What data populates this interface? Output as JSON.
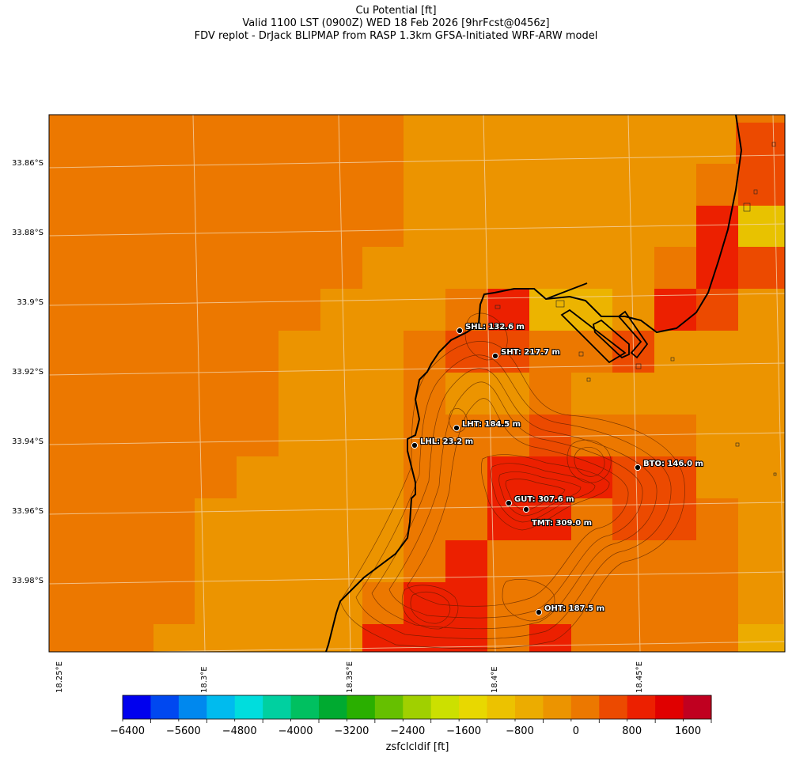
{
  "title": {
    "line1": "Cu Potential [ft]",
    "line2": "Valid 1100 LST (0900Z) WED 18 Feb 2026 [9hrFcst@0456z]",
    "line3": "FDV replot - DrJack BLIPMAP from RASP 1.3km GFSA-Initiated WRF-ARW model"
  },
  "map": {
    "lat_labels": [
      "33.86°S",
      "33.88°S",
      "33.9°S",
      "33.92°S",
      "33.94°S",
      "33.96°S",
      "33.98°S"
    ],
    "lon_labels": [
      "18.25°E",
      "18.3°E",
      "18.35°E",
      "18.4°E",
      "18.45°E"
    ],
    "stations": [
      {
        "id": "SHL",
        "label": "SHL: 132.6 m"
      },
      {
        "id": "SHT",
        "label": "SHT: 217.7 m"
      },
      {
        "id": "LHT",
        "label": "LHT: 184.5 m"
      },
      {
        "id": "LHL",
        "label": "LHL: 23.2 m"
      },
      {
        "id": "BTO",
        "label": "BTO: 146.0 m"
      },
      {
        "id": "GUT",
        "label": "GUT: 307.6 m"
      },
      {
        "id": "TMT",
        "label": "TMT: 309.0 m"
      },
      {
        "id": "OHT",
        "label": "OHT: 187.5 m"
      }
    ]
  },
  "colorbar": {
    "label": "zsfclcldif [ft]",
    "tick_labels": [
      "−6400",
      "−5600",
      "−4800",
      "−4000",
      "−3200",
      "−2400",
      "−1600",
      "−800",
      "0",
      "800",
      "1600"
    ],
    "colors": [
      "#0000ee",
      "#0048f0",
      "#0088ee",
      "#00bbee",
      "#00dddd",
      "#00d0a0",
      "#00c060",
      "#00aa30",
      "#2aaf00",
      "#66c000",
      "#a0d000",
      "#cce000",
      "#e8d800",
      "#ecc200",
      "#ecac00",
      "#ec9400",
      "#ec7800",
      "#ec4a00",
      "#ec2000",
      "#e00000",
      "#c00020"
    ]
  }
}
